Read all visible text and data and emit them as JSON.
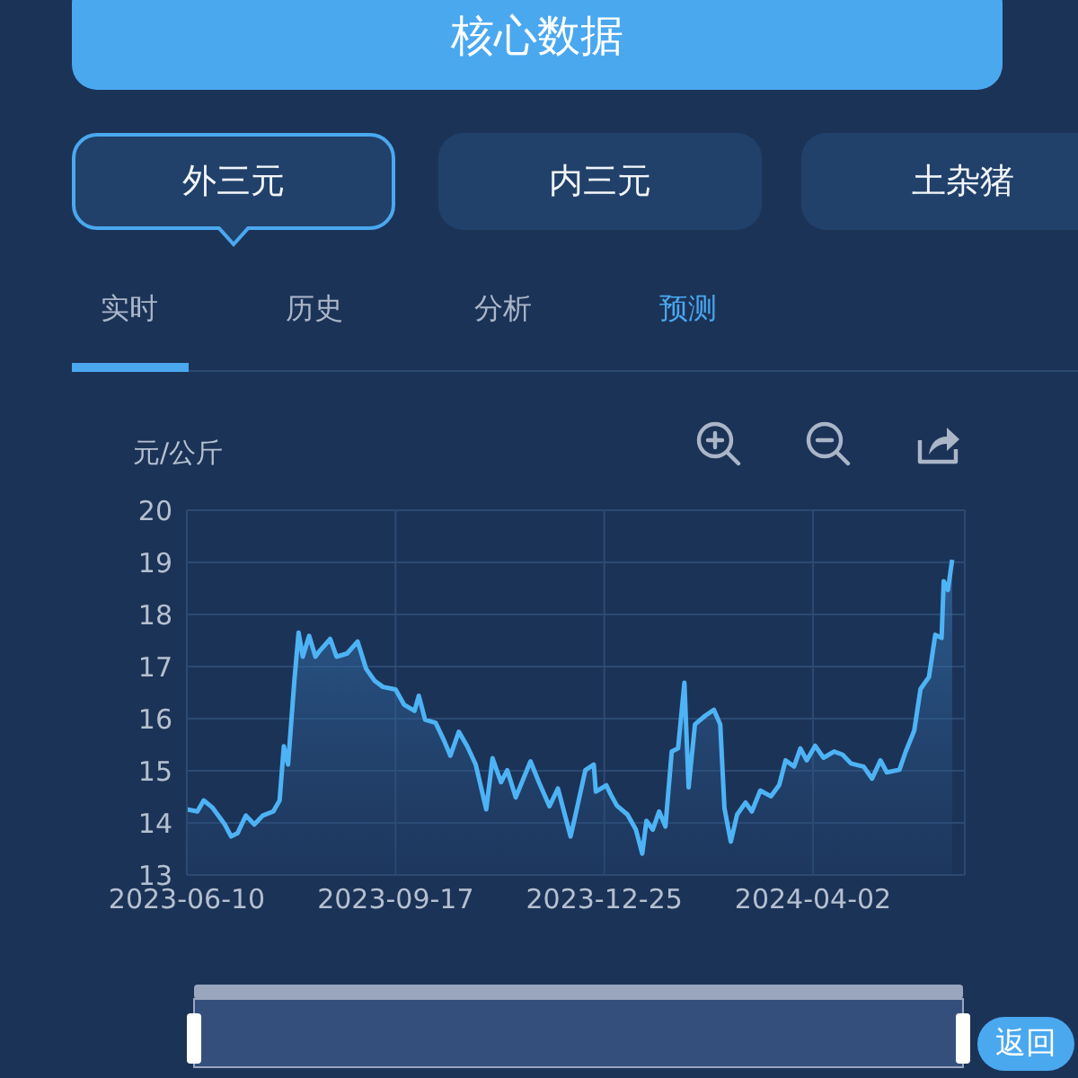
{
  "chart_data": {
    "type": "area",
    "title": "核心数据",
    "ylabel": "元/公斤",
    "annotations": [
      "外三元",
      "内三元",
      "土杂猪",
      "实时",
      "历史",
      "分析",
      "预测",
      "返回"
    ],
    "x": [
      "2023-06-10",
      "2023-06-15",
      "2023-06-18",
      "2023-06-22",
      "2023-06-28",
      "2023-07-01",
      "2023-07-04",
      "2023-07-08",
      "2023-07-12",
      "2023-07-16",
      "2023-07-21",
      "2023-07-24",
      "2023-07-26",
      "2023-07-28",
      "2023-07-31",
      "2023-08-02",
      "2023-08-04",
      "2023-08-07",
      "2023-08-10",
      "2023-08-12",
      "2023-08-17",
      "2023-08-20",
      "2023-08-25",
      "2023-08-30",
      "2023-09-03",
      "2023-09-07",
      "2023-09-11",
      "2023-09-17",
      "2023-09-21",
      "2023-09-26",
      "2023-09-28",
      "2023-10-01",
      "2023-10-06",
      "2023-10-10",
      "2023-10-13",
      "2023-10-17",
      "2023-10-21",
      "2023-10-25",
      "2023-10-30",
      "2023-11-02",
      "2023-11-06",
      "2023-11-09",
      "2023-11-13",
      "2023-11-20",
      "2023-11-24",
      "2023-11-29",
      "2023-12-03",
      "2023-12-09",
      "2023-12-11",
      "2023-12-16",
      "2023-12-20",
      "2023-12-21",
      "2023-12-26",
      "2023-12-28",
      "2023-12-31",
      "2024-01-05",
      "2024-01-09",
      "2024-01-12",
      "2024-01-14",
      "2024-01-17",
      "2024-01-20",
      "2024-01-23",
      "2024-01-26",
      "2024-01-29",
      "2024-02-01",
      "2024-02-03",
      "2024-02-06",
      "2024-02-11",
      "2024-02-15",
      "2024-02-18",
      "2024-02-20",
      "2024-02-23",
      "2024-02-26",
      "2024-03-01",
      "2024-03-04",
      "2024-03-08",
      "2024-03-13",
      "2024-03-17",
      "2024-03-20",
      "2024-03-24",
      "2024-03-27",
      "2024-03-30",
      "2024-04-03",
      "2024-04-07",
      "2024-04-12",
      "2024-04-16",
      "2024-04-20",
      "2024-04-26",
      "2024-04-30",
      "2024-05-04",
      "2024-05-07",
      "2024-05-13",
      "2024-05-16",
      "2024-05-20",
      "2024-05-23",
      "2024-05-27",
      "2024-05-30",
      "2024-06-02",
      "2024-06-03",
      "2024-06-05",
      "2024-06-07"
    ],
    "values": [
      14.26,
      14.22,
      14.43,
      14.3,
      13.97,
      13.74,
      13.8,
      14.14,
      13.97,
      14.14,
      14.22,
      14.43,
      15.47,
      15.12,
      16.73,
      17.65,
      17.19,
      17.59,
      17.19,
      17.3,
      17.53,
      17.19,
      17.25,
      17.48,
      16.96,
      16.73,
      16.61,
      16.56,
      16.27,
      16.15,
      16.44,
      15.98,
      15.92,
      15.58,
      15.29,
      15.75,
      15.47,
      15.12,
      14.26,
      15.24,
      14.78,
      15.01,
      14.49,
      15.18,
      14.78,
      14.32,
      14.66,
      13.74,
      14.09,
      15.01,
      15.12,
      14.6,
      14.72,
      14.55,
      14.33,
      14.16,
      13.87,
      13.41,
      14.04,
      13.87,
      14.22,
      13.93,
      15.37,
      15.43,
      16.69,
      14.68,
      15.89,
      16.06,
      16.17,
      15.89,
      14.28,
      13.64,
      14.16,
      14.39,
      14.22,
      14.62,
      14.51,
      14.73,
      15.2,
      15.08,
      15.43,
      15.2,
      15.48,
      15.25,
      15.37,
      15.31,
      15.14,
      15.08,
      14.85,
      15.2,
      14.97,
      15.02,
      15.37,
      15.77,
      16.57,
      16.8,
      17.61,
      17.55,
      18.64,
      18.47,
      19.05
    ],
    "color": "#4db3f5",
    "xlim": [
      "2023-06-10",
      "2024-06-13"
    ],
    "xticks": [
      "2023-06-10",
      "2023-09-17",
      "2023-12-25",
      "2024-04-02"
    ],
    "ylim": [
      13,
      20
    ],
    "yticks": [
      13,
      14,
      15,
      16,
      17,
      18,
      19,
      20
    ],
    "grid": true
  }
}
